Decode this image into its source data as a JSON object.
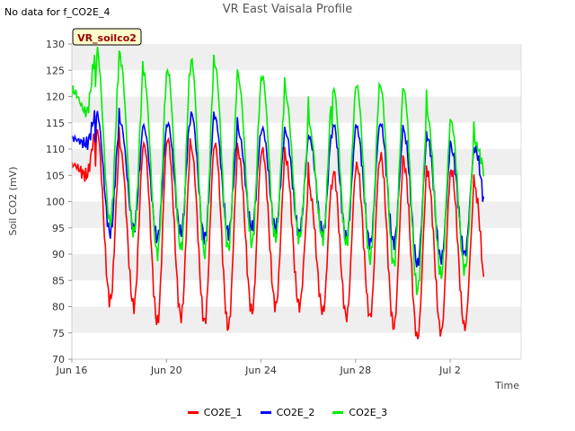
{
  "note": "No data for f_CO2E_4",
  "chart_data": {
    "type": "line",
    "title": "VR East Vaisala Profile",
    "xlabel": "Time",
    "ylabel": "Soil CO2 (mV)",
    "ylim": [
      70,
      130
    ],
    "yticks": [
      70,
      75,
      80,
      85,
      90,
      95,
      100,
      105,
      110,
      115,
      120,
      125,
      130
    ],
    "xlim": [
      "2023-06-16",
      "2023-07-05"
    ],
    "xticks": [
      {
        "date": "2023-06-16",
        "label": "Jun 16"
      },
      {
        "date": "2023-06-20",
        "label": "Jun 20"
      },
      {
        "date": "2023-06-24",
        "label": "Jun 24"
      },
      {
        "date": "2023-06-28",
        "label": "Jun 28"
      },
      {
        "date": "2023-07-02",
        "label": "Jul 2"
      }
    ],
    "station_label": "VR_soilco2",
    "legend_position": "bottom",
    "grid": "alternating horizontal bands",
    "series": [
      {
        "name": "CO2E_1",
        "color": "#ff0000",
        "x": [
          "2023-06-16",
          "2023-06-17",
          "2023-06-18",
          "2023-06-19",
          "2023-06-20",
          "2023-06-21",
          "2023-06-22",
          "2023-06-23",
          "2023-06-24",
          "2023-06-25",
          "2023-06-26",
          "2023-06-27",
          "2023-06-28",
          "2023-06-29",
          "2023-06-30",
          "2023-07-01",
          "2023-07-02",
          "2023-07-03"
        ],
        "peaks": [
          107,
          114,
          110,
          111,
          112,
          110,
          111,
          109,
          110,
          108,
          102,
          106,
          107,
          109,
          107,
          105,
          106,
          102
        ],
        "troughs": [
          105,
          81,
          80,
          77,
          78,
          77,
          76,
          79,
          80,
          80,
          79,
          78,
          78,
          76,
          74,
          75,
          76,
          78
        ]
      },
      {
        "name": "CO2E_2",
        "color": "#0000ff",
        "x": [
          "2023-06-16",
          "2023-06-17",
          "2023-06-18",
          "2023-06-19",
          "2023-06-20",
          "2023-06-21",
          "2023-06-22",
          "2023-06-23",
          "2023-06-24",
          "2023-06-25",
          "2023-06-26",
          "2023-06-27",
          "2023-06-28",
          "2023-06-29",
          "2023-06-30",
          "2023-07-01",
          "2023-07-02",
          "2023-07-03"
        ],
        "peaks": [
          112,
          117,
          115,
          114,
          115,
          117,
          116,
          113,
          114,
          113,
          112,
          115,
          114,
          115,
          113,
          112,
          110,
          110
        ],
        "troughs": [
          111,
          94,
          95,
          93,
          94,
          93,
          94,
          95,
          95,
          94,
          94,
          93,
          92,
          92,
          88,
          89,
          90,
          96
        ]
      },
      {
        "name": "CO2E_3",
        "color": "#00ee00",
        "x": [
          "2023-06-16",
          "2023-06-17",
          "2023-06-18",
          "2023-06-19",
          "2023-06-20",
          "2023-06-21",
          "2023-06-22",
          "2023-06-23",
          "2023-06-24",
          "2023-06-25",
          "2023-06-26",
          "2023-06-27",
          "2023-06-28",
          "2023-06-29",
          "2023-06-30",
          "2023-07-01",
          "2023-07-02",
          "2023-07-03"
        ],
        "peaks": [
          121,
          129,
          127,
          124,
          125,
          127,
          126,
          123,
          124,
          120,
          114,
          122,
          122,
          122,
          121,
          116,
          115,
          111
        ],
        "troughs": [
          117,
          96,
          94,
          90,
          91,
          90,
          91,
          92,
          93,
          93,
          93,
          92,
          89,
          88,
          83,
          86,
          87,
          104
        ]
      }
    ]
  }
}
